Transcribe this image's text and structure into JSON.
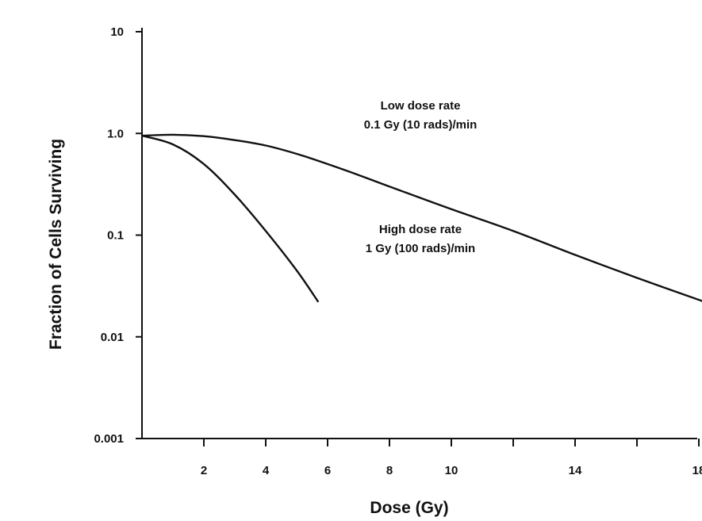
{
  "chart_data": {
    "type": "line",
    "xlabel": "Dose (Gy)",
    "ylabel": "Fraction of Cells Surviving",
    "x_ticks": [
      2,
      4,
      6,
      8,
      10,
      12,
      14,
      16,
      18
    ],
    "x_tick_labels": [
      "2",
      "4",
      "6",
      "8",
      "10",
      "",
      "14",
      "",
      "18"
    ],
    "xlim": [
      0,
      18.3
    ],
    "y_scale": "log",
    "y_ticks": [
      10,
      1.0,
      0.1,
      0.01,
      0.001
    ],
    "y_tick_labels": [
      "10",
      "1.0",
      "0.1",
      "0.01",
      "0.001"
    ],
    "ylim": [
      0.001,
      10
    ],
    "grid": false,
    "series": [
      {
        "name": "Low dose rate",
        "x": [
          0,
          1,
          2,
          3,
          4,
          5,
          6,
          7,
          8,
          10,
          12,
          14,
          16,
          18.2
        ],
        "values": [
          0.95,
          0.97,
          0.94,
          0.86,
          0.76,
          0.63,
          0.5,
          0.39,
          0.3,
          0.18,
          0.11,
          0.064,
          0.038,
          0.022
        ]
      },
      {
        "name": "High dose rate",
        "x": [
          0,
          1,
          2,
          3,
          4,
          5,
          5.7
        ],
        "values": [
          0.95,
          0.78,
          0.5,
          0.25,
          0.11,
          0.045,
          0.022
        ]
      }
    ],
    "annotations": [
      {
        "series": "Low dose rate",
        "lines": [
          "Low dose rate",
          "0.1 Gy (10 rads)/min"
        ],
        "x": 9.0,
        "y": 1.72
      },
      {
        "series": "High dose rate",
        "lines": [
          "High dose rate",
          "1 Gy (100 rads)/min"
        ],
        "x": 9.0,
        "y": 0.105
      }
    ]
  }
}
